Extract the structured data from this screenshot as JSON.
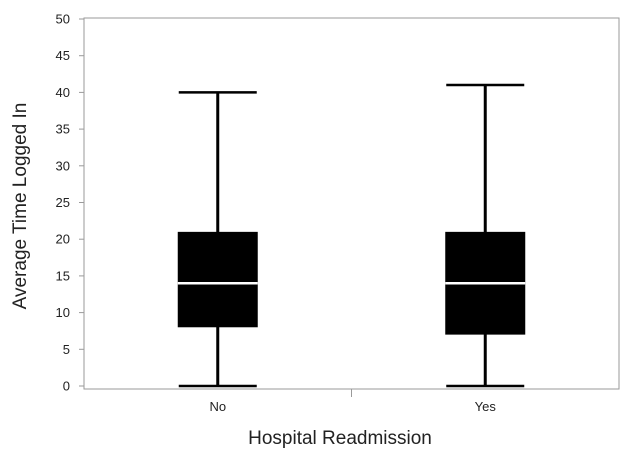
{
  "chart_data": {
    "type": "boxplot",
    "title": "",
    "xlabel": "Hospital Readmission",
    "ylabel": "Average Time Logged In",
    "ylim": [
      0,
      50
    ],
    "yticks": [
      0,
      5,
      10,
      15,
      20,
      25,
      30,
      35,
      40,
      45,
      50
    ],
    "grid": false,
    "categories": [
      "No",
      "Yes"
    ],
    "boxes": [
      {
        "category": "No",
        "min": 0,
        "q1": 8,
        "median": 14,
        "q3": 21,
        "max": 40
      },
      {
        "category": "Yes",
        "min": 0,
        "q1": 7,
        "median": 14,
        "q3": 21,
        "max": 41
      }
    ],
    "box_color": "#000000",
    "median_color": "#ffffff"
  }
}
